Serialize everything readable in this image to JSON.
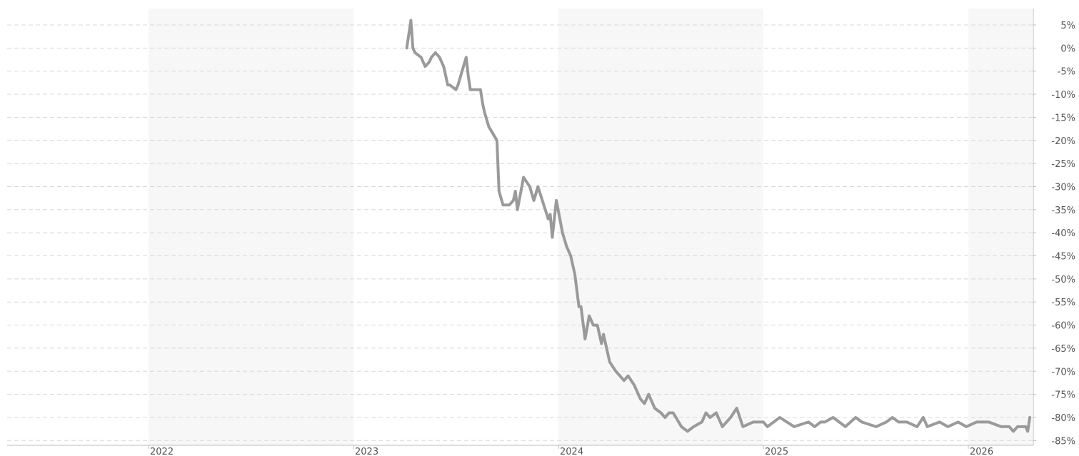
{
  "chart_data": {
    "type": "line",
    "title": "",
    "xlabel": "",
    "ylabel": "",
    "x_tick_labels": [
      "2022",
      "2023",
      "2024",
      "2025",
      "2026"
    ],
    "y_tick_labels": [
      "5%",
      "0%",
      "-5%",
      "-10%",
      "-15%",
      "-20%",
      "-25%",
      "-30%",
      "-35%",
      "-40%",
      "-45%",
      "-50%",
      "-55%",
      "-60%",
      "-65%",
      "-70%",
      "-75%",
      "-80%",
      "-85%"
    ],
    "y_ticks": [
      5,
      0,
      -5,
      -10,
      -15,
      -20,
      -25,
      -30,
      -35,
      -40,
      -45,
      -50,
      -55,
      -60,
      -65,
      -70,
      -75,
      -80,
      -85
    ],
    "xlim": [
      2021.31,
      2026.31
    ],
    "ylim": [
      -85,
      5
    ],
    "grid": true,
    "shaded_year_bands": [
      [
        2022,
        2023
      ],
      [
        2024,
        2025
      ],
      [
        2026,
        2026.31
      ]
    ],
    "legend": "none",
    "colors": {
      "line": "#9a9a9a",
      "band": "#f7f7f7",
      "grid": "#d8d8d8",
      "tick_text": "#555555"
    },
    "series": [
      {
        "x": [
          2023.26,
          2023.28,
          2023.29,
          2023.3,
          2023.33,
          2023.35,
          2023.37,
          2023.38,
          2023.4,
          2023.42,
          2023.44,
          2023.46,
          2023.47,
          2023.5,
          2023.51,
          2023.55,
          2023.56,
          2023.57,
          2023.62,
          2023.63,
          2023.64,
          2023.66,
          2023.7,
          2023.71,
          2023.73,
          2023.74,
          2023.76,
          2023.78,
          2023.79,
          2023.8,
          2023.83,
          2023.86,
          2023.88,
          2023.9,
          2023.95,
          2023.96,
          2023.97,
          2023.99,
          2024.02,
          2024.04,
          2024.06,
          2024.08,
          2024.1,
          2024.11,
          2024.13,
          2024.15,
          2024.17,
          2024.19,
          2024.21,
          2024.22,
          2024.25,
          2024.28,
          2024.3,
          2024.32,
          2024.34,
          2024.37,
          2024.4,
          2024.42,
          2024.44,
          2024.47,
          2024.5,
          2024.52,
          2024.54,
          2024.56,
          2024.6,
          2024.63,
          2024.66,
          2024.7,
          2024.72,
          2024.74,
          2024.77,
          2024.8,
          2024.84,
          2024.87,
          2024.9,
          2024.95,
          2025.0,
          2025.02,
          2025.08,
          2025.15,
          2025.22,
          2025.25,
          2025.28,
          2025.3,
          2025.34,
          2025.37,
          2025.4,
          2025.45,
          2025.48,
          2025.55,
          2025.6,
          2025.63,
          2025.66,
          2025.7,
          2025.75,
          2025.78,
          2025.8,
          2025.86,
          2025.9,
          2025.95,
          2025.99,
          2026.04,
          2026.1,
          2026.16,
          2026.2,
          2026.22,
          2026.24,
          2026.26,
          2026.28,
          2026.29,
          2026.3
        ],
        "values": [
          0,
          6,
          0,
          -1,
          -2,
          -4,
          -3,
          -2,
          -1,
          -2,
          -4,
          -8,
          -8,
          -9,
          -8,
          -2,
          -6,
          -9,
          -9,
          -12,
          -14,
          -17,
          -20,
          -31,
          -34,
          -34,
          -34,
          -33,
          -31,
          -35,
          -28,
          -30,
          -33,
          -30,
          -37,
          -36,
          -41,
          -33,
          -40,
          -43,
          -45,
          -49,
          -56,
          -56,
          -63,
          -58,
          -60,
          -60,
          -64,
          -62,
          -68,
          -70,
          -71,
          -72,
          -71,
          -73,
          -76,
          -77,
          -75,
          -78,
          -79,
          -80,
          -79,
          -79,
          -82,
          -83,
          -82,
          -81,
          -79,
          -80,
          -79,
          -82,
          -80,
          -78,
          -82,
          -81,
          -81,
          -82,
          -80,
          -82,
          -81,
          -82,
          -81,
          -81,
          -80,
          -81,
          -82,
          -80,
          -81,
          -82,
          -81,
          -80,
          -81,
          -81,
          -82,
          -80,
          -82,
          -81,
          -82,
          -81,
          -82,
          -81,
          -81,
          -82,
          -82,
          -83,
          -82,
          -82,
          -82,
          -83,
          -80
        ]
      }
    ]
  }
}
